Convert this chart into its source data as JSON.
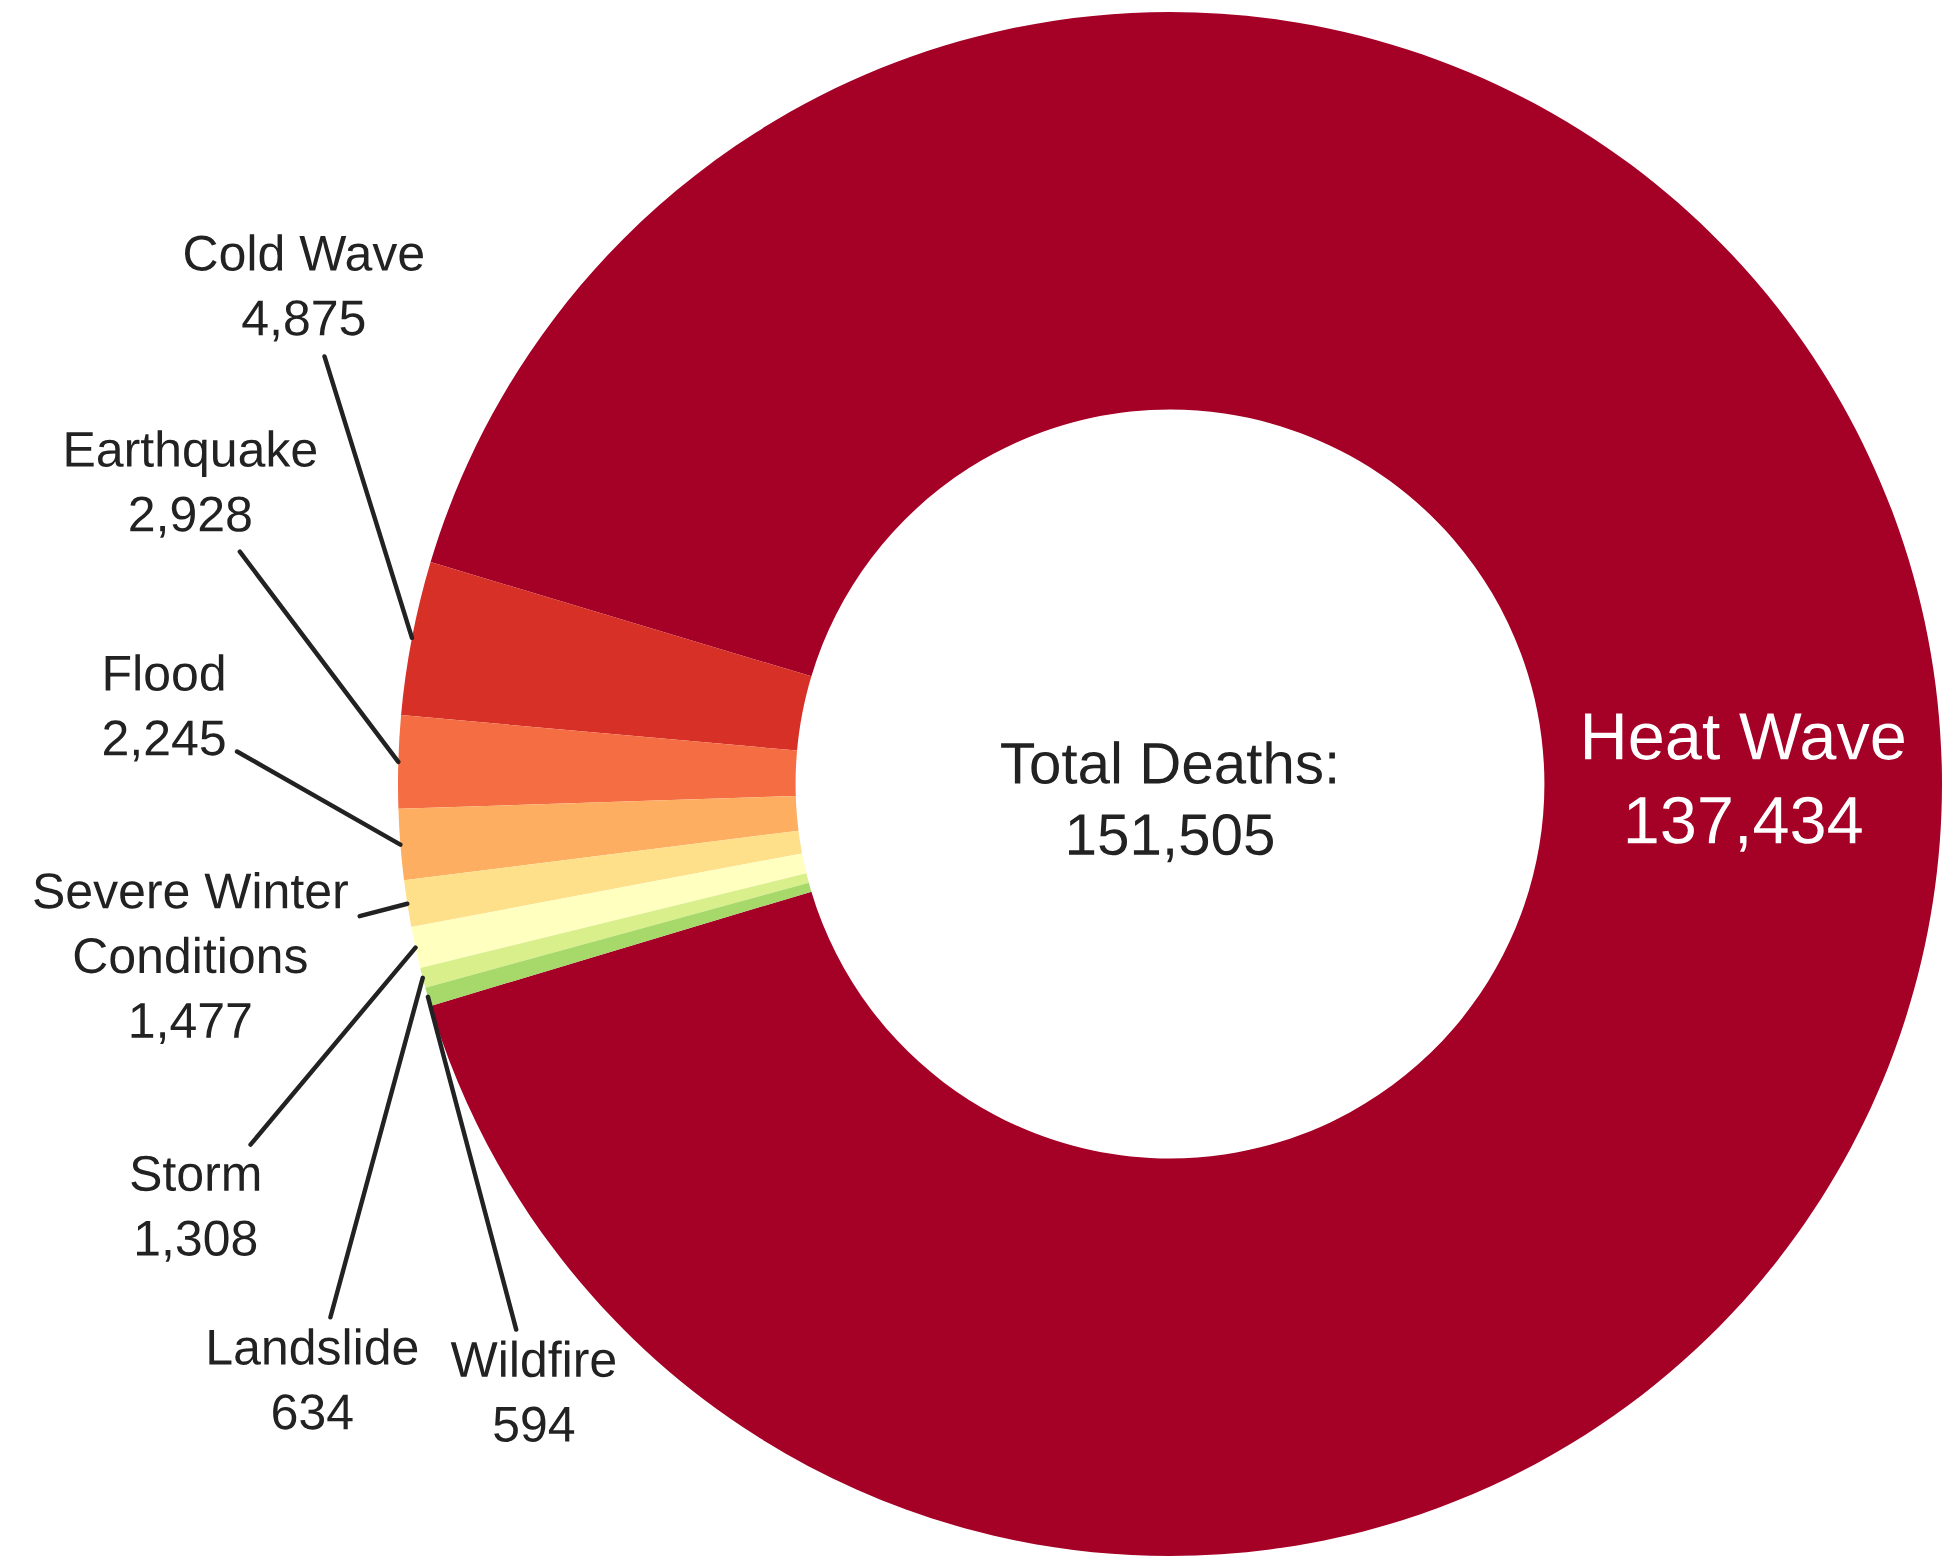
{
  "chart_data": {
    "type": "donut",
    "categories": [
      "Heat Wave",
      "Cold Wave",
      "Earthquake",
      "Flood",
      "Severe Winter Conditions",
      "Storm",
      "Landslide",
      "Wildfire"
    ],
    "values": [
      137434,
      4875,
      2928,
      2245,
      1477,
      1308,
      634,
      594
    ],
    "colors": [
      "#a50026",
      "#d73027",
      "#f46d43",
      "#fdae61",
      "#fee08b",
      "#ffffbf",
      "#d9ef8b",
      "#a6d96a"
    ],
    "value_labels": [
      "137,434",
      "4,875",
      "2,928",
      "2,245",
      "1,477",
      "1,308",
      "634",
      "594"
    ],
    "annotations": [
      "Total Deaths:\n151,505"
    ]
  }
}
